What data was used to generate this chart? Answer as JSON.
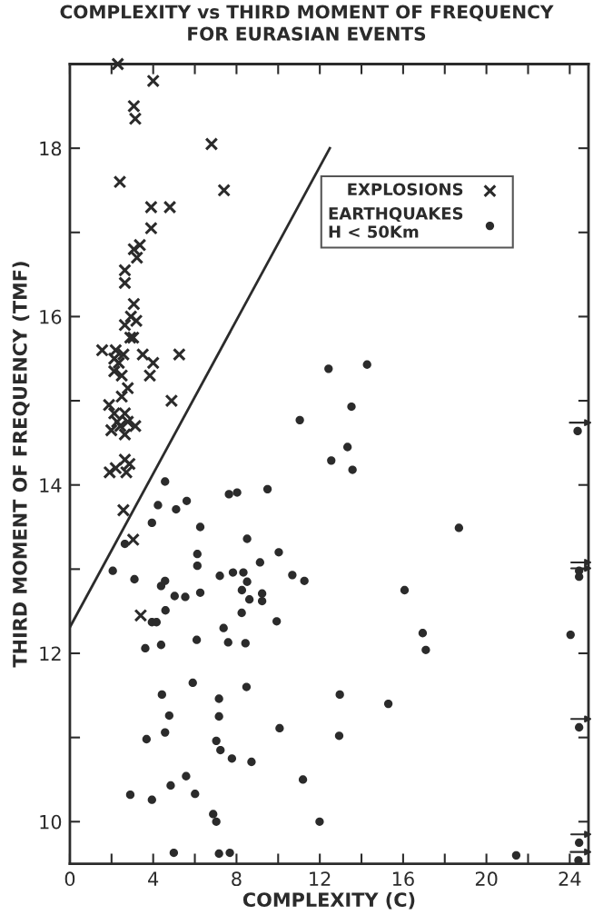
{
  "chart_data": {
    "type": "scatter",
    "title": "COMPLEXITY vs THIRD MOMENT OF FREQUENCY\nFOR EURASIAN EVENTS",
    "xlabel": "COMPLEXITY (C)",
    "ylabel": "THIRD MOMENT OF FREQUENCY (TMF)",
    "xlim": [
      0,
      24.9
    ],
    "ylim": [
      9.5,
      19
    ],
    "xticks": [
      0,
      {
        "value": 2,
        "label": null
      },
      4,
      {
        "value": 6,
        "label": null
      },
      8,
      {
        "value": 10,
        "label": null
      },
      12,
      {
        "value": 14,
        "label": null
      },
      16,
      {
        "value": 18,
        "label": null
      },
      20,
      {
        "value": 22,
        "label": null
      },
      24
    ],
    "yticks": [
      10,
      {
        "value": 11,
        "label": null
      },
      12,
      {
        "value": 13,
        "label": null
      },
      14,
      {
        "value": 15,
        "label": null
      },
      16,
      {
        "value": 17,
        "label": null
      },
      18
    ],
    "grid": false,
    "legend": "top right",
    "series": [
      {
        "name": "EXPLOSIONS",
        "color": "#2b2b2b",
        "marker": "cross",
        "x": [
          2.3,
          4.0,
          3.07,
          3.14,
          6.8,
          2.4,
          7.4,
          3.9,
          4.8,
          3.9,
          3.36,
          3.07,
          3.22,
          2.64,
          2.64,
          3.07,
          2.93,
          3.19,
          2.64,
          2.9,
          3.04,
          1.55,
          2.2,
          2.57,
          2.13,
          3.5,
          5.25,
          4.0,
          3.84,
          2.35,
          2.13,
          2.49,
          2.78,
          2.49,
          1.88,
          4.88,
          2.13,
          2.64,
          2.27,
          2.78,
          3.14,
          1.99,
          2.64,
          2.42,
          2.64,
          2.86,
          1.91,
          2.35,
          2.71,
          2.2,
          2.57,
          3.04,
          3.4
        ],
        "values": [
          19.0,
          18.8,
          18.5,
          18.35,
          18.05,
          17.6,
          17.5,
          17.3,
          17.3,
          17.05,
          16.85,
          16.8,
          16.7,
          16.55,
          16.4,
          16.15,
          16.0,
          15.95,
          15.9,
          15.75,
          15.75,
          15.6,
          15.6,
          15.55,
          15.5,
          15.55,
          15.55,
          15.45,
          15.3,
          15.45,
          15.35,
          15.3,
          15.15,
          15.05,
          14.95,
          15.0,
          14.85,
          14.85,
          14.75,
          14.75,
          14.7,
          14.65,
          14.6,
          14.7,
          14.3,
          14.25,
          14.15,
          null,
          14.15,
          14.2,
          13.7,
          13.35,
          12.45
        ]
      },
      {
        "name": "EARTHQUAKES\nH < 50Km",
        "color": "#2b2b2b",
        "marker": "circle",
        "x": [
          4.57,
          7.64,
          8.03,
          4.23,
          5.61,
          5.1,
          3.94,
          6.26,
          8.51,
          2.64,
          6.12,
          10.03,
          6.12,
          9.13,
          2.06,
          7.2,
          7.83,
          8.33,
          10.68,
          11.26,
          3.1,
          4.57,
          4.38,
          8.51,
          8.26,
          5.03,
          5.54,
          6.26,
          9.23,
          9.23,
          8.62,
          4.59,
          8.25,
          3.94,
          4.16,
          9.93,
          7.38,
          3.62,
          4.38,
          6.09,
          7.6,
          8.43,
          5.9,
          8.48,
          4.42,
          7.16,
          12.96,
          4.77,
          7.16,
          10.07,
          4.57,
          12.93,
          3.68,
          7.03,
          7.23,
          7.78,
          8.72,
          5.58,
          11.19,
          4.84,
          2.9,
          3.94,
          6.01,
          6.88,
          7.03,
          11.99,
          4.99,
          7.16,
          7.68,
          12.42,
          14.27,
          13.52,
          11.04,
          13.33,
          12.55,
          13.57,
          24.38,
          9.49,
          18.68,
          24.45,
          24.45,
          16.07,
          16.94,
          17.09,
          24.04,
          15.29,
          24.45,
          24.45,
          24.42,
          21.43
        ],
        "values": [
          14.04,
          13.89,
          13.91,
          13.76,
          13.81,
          13.71,
          13.55,
          13.5,
          13.36,
          13.3,
          13.18,
          13.2,
          13.04,
          13.08,
          12.98,
          12.92,
          12.96,
          12.96,
          12.93,
          12.86,
          12.88,
          12.86,
          12.8,
          12.85,
          12.75,
          12.68,
          12.67,
          12.72,
          12.71,
          12.62,
          12.64,
          12.51,
          12.48,
          12.37,
          12.37,
          12.38,
          12.3,
          12.06,
          12.1,
          12.16,
          12.13,
          12.12,
          11.65,
          11.6,
          11.51,
          11.46,
          11.51,
          11.26,
          11.25,
          11.11,
          11.06,
          11.02,
          10.98,
          10.96,
          10.85,
          10.75,
          10.71,
          10.54,
          10.5,
          10.43,
          10.32,
          10.26,
          10.33,
          10.09,
          10.0,
          10.0,
          9.63,
          9.62,
          9.63,
          15.38,
          15.43,
          14.93,
          14.77,
          14.45,
          14.29,
          14.18,
          14.64,
          13.95,
          13.49,
          12.98,
          12.91,
          12.75,
          12.24,
          12.04,
          12.22,
          11.4,
          11.12,
          9.75,
          9.54,
          9.6
        ]
      },
      {
        "type": "line",
        "color": "#2b2b2b",
        "x": [
          0,
          12.48
        ],
        "values": [
          12.31,
          18.0
        ]
      }
    ]
  }
}
